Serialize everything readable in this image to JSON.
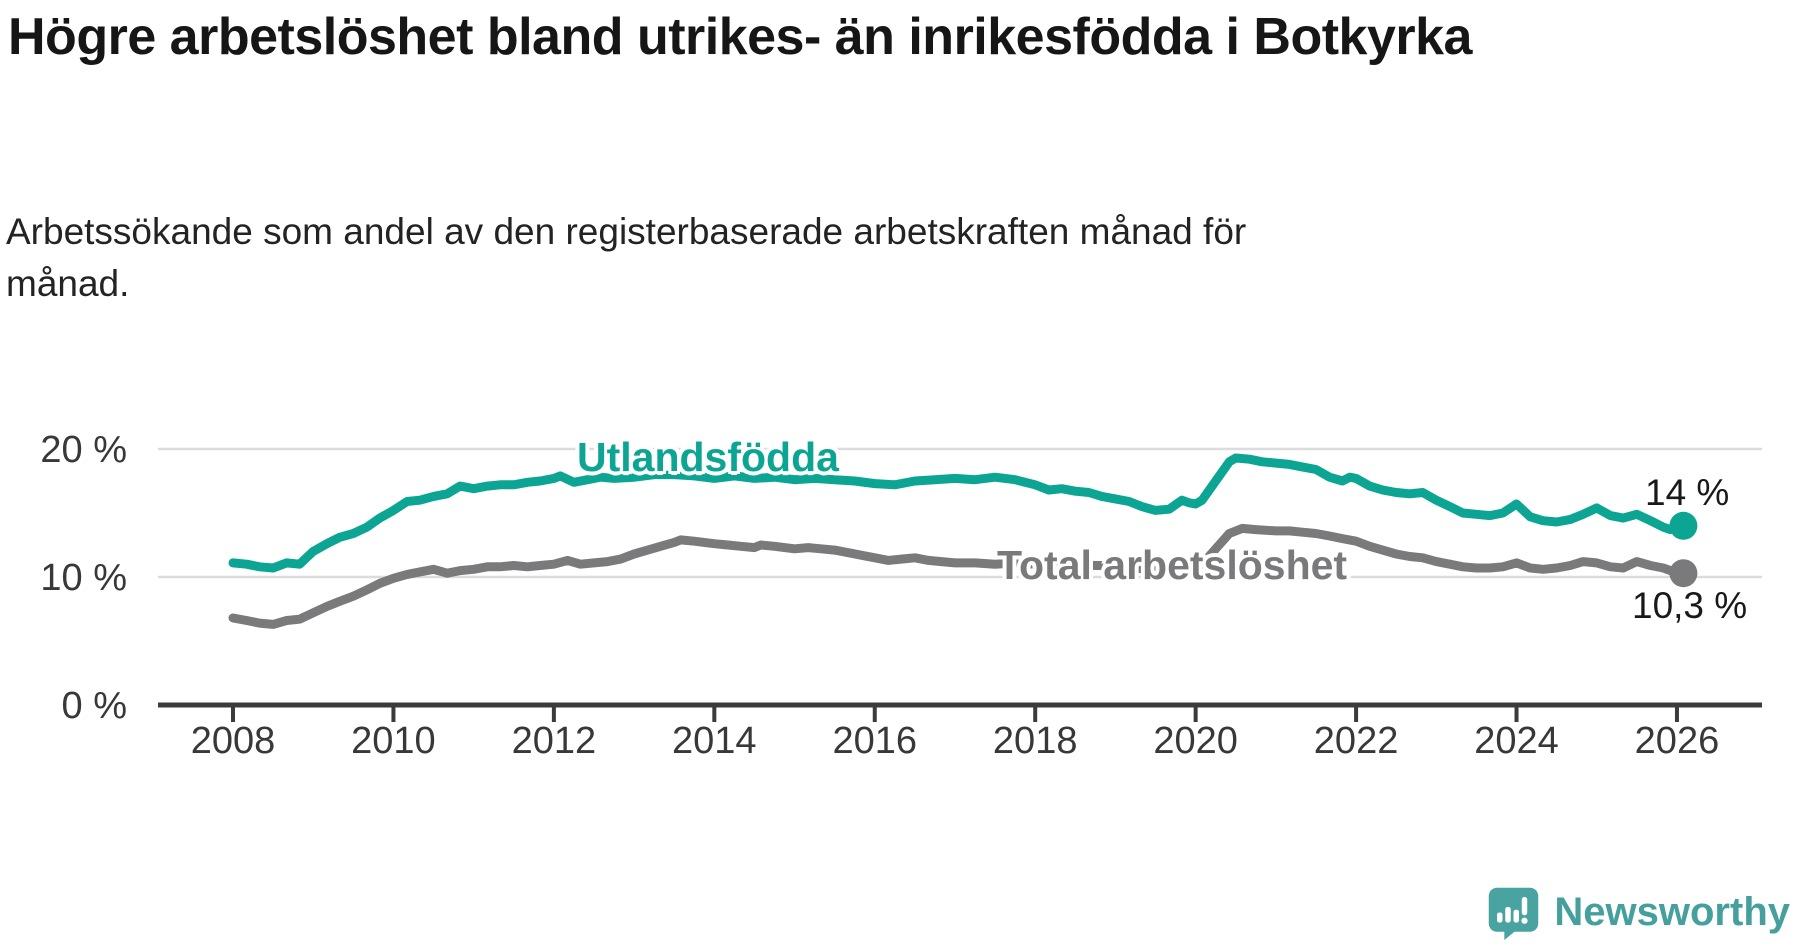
{
  "chart_data": {
    "type": "line",
    "title": "Högre arbetslöshet bland utrikes- än inrikesfödda i Botkyrka",
    "subtitle": "Arbetssökande som andel av den registerbaserade arbetskraften månad för månad.",
    "xlabel": "",
    "ylabel": "",
    "grid": "horizontal-only",
    "legend_position": "inline-on-lines",
    "x_domain": [
      2007.05,
      2027.1
    ],
    "y_domain": [
      0,
      21.5
    ],
    "x_ticks": [
      2008,
      2010,
      2012,
      2014,
      2016,
      2018,
      2020,
      2022,
      2024,
      2026
    ],
    "y_ticks": [
      {
        "value": 20,
        "label": "20 %"
      },
      {
        "value": 10,
        "label": "10 %"
      },
      {
        "value": 0,
        "label": "0 %"
      }
    ],
    "axis_color": "#3b3b3b",
    "gridline_color": "#dcdcdc",
    "series": [
      {
        "id": "utlandsfodda",
        "name": "Utlandsfödda",
        "color": "#0ca593",
        "end_label": "14 %",
        "last_value": 14.0,
        "points": [
          [
            2008.0,
            11.1
          ],
          [
            2008.17,
            11.0
          ],
          [
            2008.33,
            10.8
          ],
          [
            2008.5,
            10.7
          ],
          [
            2008.67,
            11.1
          ],
          [
            2008.83,
            11.0
          ],
          [
            2009.0,
            12.0
          ],
          [
            2009.17,
            12.6
          ],
          [
            2009.33,
            13.1
          ],
          [
            2009.5,
            13.4
          ],
          [
            2009.67,
            13.9
          ],
          [
            2009.83,
            14.6
          ],
          [
            2010.0,
            15.2
          ],
          [
            2010.17,
            15.9
          ],
          [
            2010.33,
            16.0
          ],
          [
            2010.5,
            16.3
          ],
          [
            2010.67,
            16.5
          ],
          [
            2010.83,
            17.1
          ],
          [
            2011.0,
            16.9
          ],
          [
            2011.17,
            17.1
          ],
          [
            2011.33,
            17.2
          ],
          [
            2011.5,
            17.2
          ],
          [
            2011.67,
            17.4
          ],
          [
            2011.83,
            17.5
          ],
          [
            2012.0,
            17.7
          ],
          [
            2012.08,
            17.9
          ],
          [
            2012.25,
            17.4
          ],
          [
            2012.42,
            17.6
          ],
          [
            2012.58,
            17.8
          ],
          [
            2012.75,
            17.7
          ],
          [
            2013.0,
            17.8
          ],
          [
            2013.25,
            18.0
          ],
          [
            2013.5,
            18.0
          ],
          [
            2013.75,
            17.9
          ],
          [
            2014.0,
            17.7
          ],
          [
            2014.25,
            17.9
          ],
          [
            2014.5,
            17.7
          ],
          [
            2014.75,
            17.8
          ],
          [
            2015.0,
            17.6
          ],
          [
            2015.25,
            17.7
          ],
          [
            2015.5,
            17.6
          ],
          [
            2015.75,
            17.5
          ],
          [
            2016.0,
            17.3
          ],
          [
            2016.25,
            17.2
          ],
          [
            2016.5,
            17.5
          ],
          [
            2016.75,
            17.6
          ],
          [
            2017.0,
            17.7
          ],
          [
            2017.25,
            17.6
          ],
          [
            2017.5,
            17.8
          ],
          [
            2017.75,
            17.6
          ],
          [
            2018.0,
            17.2
          ],
          [
            2018.17,
            16.8
          ],
          [
            2018.33,
            16.9
          ],
          [
            2018.5,
            16.7
          ],
          [
            2018.67,
            16.6
          ],
          [
            2018.83,
            16.3
          ],
          [
            2019.0,
            16.1
          ],
          [
            2019.17,
            15.9
          ],
          [
            2019.33,
            15.5
          ],
          [
            2019.5,
            15.2
          ],
          [
            2019.67,
            15.3
          ],
          [
            2019.83,
            16.0
          ],
          [
            2019.92,
            15.8
          ],
          [
            2020.0,
            15.7
          ],
          [
            2020.08,
            16.0
          ],
          [
            2020.25,
            17.5
          ],
          [
            2020.42,
            19.0
          ],
          [
            2020.5,
            19.3
          ],
          [
            2020.67,
            19.2
          ],
          [
            2020.83,
            19.0
          ],
          [
            2021.0,
            18.9
          ],
          [
            2021.17,
            18.8
          ],
          [
            2021.33,
            18.6
          ],
          [
            2021.5,
            18.4
          ],
          [
            2021.67,
            17.8
          ],
          [
            2021.83,
            17.5
          ],
          [
            2021.92,
            17.8
          ],
          [
            2022.0,
            17.7
          ],
          [
            2022.17,
            17.1
          ],
          [
            2022.33,
            16.8
          ],
          [
            2022.5,
            16.6
          ],
          [
            2022.67,
            16.5
          ],
          [
            2022.83,
            16.6
          ],
          [
            2023.0,
            16.0
          ],
          [
            2023.17,
            15.5
          ],
          [
            2023.33,
            15.0
          ],
          [
            2023.5,
            14.9
          ],
          [
            2023.67,
            14.8
          ],
          [
            2023.83,
            15.0
          ],
          [
            2024.0,
            15.7
          ],
          [
            2024.17,
            14.7
          ],
          [
            2024.33,
            14.4
          ],
          [
            2024.5,
            14.3
          ],
          [
            2024.67,
            14.5
          ],
          [
            2024.83,
            14.9
          ],
          [
            2025.0,
            15.4
          ],
          [
            2025.17,
            14.8
          ],
          [
            2025.33,
            14.6
          ],
          [
            2025.5,
            14.9
          ],
          [
            2025.67,
            14.4
          ],
          [
            2025.83,
            13.9
          ],
          [
            2025.92,
            13.7
          ],
          [
            2026.08,
            14.0
          ]
        ]
      },
      {
        "id": "total",
        "name": "Total arbetslöshet",
        "color": "#7a7a7c",
        "end_label": "10,3 %",
        "last_value": 10.3,
        "points": [
          [
            2008.0,
            6.8
          ],
          [
            2008.17,
            6.6
          ],
          [
            2008.33,
            6.4
          ],
          [
            2008.5,
            6.3
          ],
          [
            2008.67,
            6.6
          ],
          [
            2008.83,
            6.7
          ],
          [
            2009.0,
            7.2
          ],
          [
            2009.17,
            7.7
          ],
          [
            2009.33,
            8.1
          ],
          [
            2009.5,
            8.5
          ],
          [
            2009.67,
            9.0
          ],
          [
            2009.83,
            9.5
          ],
          [
            2010.0,
            9.9
          ],
          [
            2010.17,
            10.2
          ],
          [
            2010.33,
            10.4
          ],
          [
            2010.5,
            10.6
          ],
          [
            2010.67,
            10.3
          ],
          [
            2010.83,
            10.5
          ],
          [
            2011.0,
            10.6
          ],
          [
            2011.17,
            10.8
          ],
          [
            2011.33,
            10.8
          ],
          [
            2011.5,
            10.9
          ],
          [
            2011.67,
            10.8
          ],
          [
            2011.83,
            10.9
          ],
          [
            2012.0,
            11.0
          ],
          [
            2012.17,
            11.3
          ],
          [
            2012.33,
            11.0
          ],
          [
            2012.5,
            11.1
          ],
          [
            2012.67,
            11.2
          ],
          [
            2012.83,
            11.4
          ],
          [
            2013.0,
            11.8
          ],
          [
            2013.17,
            12.1
          ],
          [
            2013.33,
            12.4
          ],
          [
            2013.5,
            12.7
          ],
          [
            2013.58,
            12.9
          ],
          [
            2013.75,
            12.8
          ],
          [
            2014.0,
            12.6
          ],
          [
            2014.17,
            12.5
          ],
          [
            2014.33,
            12.4
          ],
          [
            2014.5,
            12.3
          ],
          [
            2014.58,
            12.5
          ],
          [
            2014.75,
            12.4
          ],
          [
            2015.0,
            12.2
          ],
          [
            2015.17,
            12.3
          ],
          [
            2015.33,
            12.2
          ],
          [
            2015.5,
            12.1
          ],
          [
            2015.67,
            11.9
          ],
          [
            2015.83,
            11.7
          ],
          [
            2016.0,
            11.5
          ],
          [
            2016.17,
            11.3
          ],
          [
            2016.33,
            11.4
          ],
          [
            2016.5,
            11.5
          ],
          [
            2016.67,
            11.3
          ],
          [
            2016.83,
            11.2
          ],
          [
            2017.0,
            11.1
          ],
          [
            2017.25,
            11.1
          ],
          [
            2017.5,
            11.0
          ],
          [
            2017.75,
            11.1
          ],
          [
            2018.0,
            11.0
          ],
          [
            2018.25,
            10.9
          ],
          [
            2018.5,
            11.0
          ],
          [
            2018.75,
            10.9
          ],
          [
            2019.0,
            10.9
          ],
          [
            2019.25,
            10.7
          ],
          [
            2019.5,
            10.5
          ],
          [
            2019.75,
            10.6
          ],
          [
            2020.0,
            10.8
          ],
          [
            2020.08,
            11.0
          ],
          [
            2020.25,
            12.2
          ],
          [
            2020.42,
            13.4
          ],
          [
            2020.58,
            13.8
          ],
          [
            2020.75,
            13.7
          ],
          [
            2021.0,
            13.6
          ],
          [
            2021.17,
            13.6
          ],
          [
            2021.33,
            13.5
          ],
          [
            2021.5,
            13.4
          ],
          [
            2021.67,
            13.2
          ],
          [
            2021.83,
            13.0
          ],
          [
            2022.0,
            12.8
          ],
          [
            2022.17,
            12.4
          ],
          [
            2022.33,
            12.1
          ],
          [
            2022.5,
            11.8
          ],
          [
            2022.67,
            11.6
          ],
          [
            2022.83,
            11.5
          ],
          [
            2023.0,
            11.2
          ],
          [
            2023.17,
            11.0
          ],
          [
            2023.33,
            10.8
          ],
          [
            2023.5,
            10.7
          ],
          [
            2023.67,
            10.7
          ],
          [
            2023.83,
            10.8
          ],
          [
            2024.0,
            11.1
          ],
          [
            2024.17,
            10.7
          ],
          [
            2024.33,
            10.6
          ],
          [
            2024.5,
            10.7
          ],
          [
            2024.67,
            10.9
          ],
          [
            2024.83,
            11.2
          ],
          [
            2025.0,
            11.1
          ],
          [
            2025.17,
            10.8
          ],
          [
            2025.33,
            10.7
          ],
          [
            2025.5,
            11.2
          ],
          [
            2025.67,
            10.9
          ],
          [
            2025.83,
            10.7
          ],
          [
            2025.92,
            10.5
          ],
          [
            2026.08,
            10.3
          ]
        ]
      }
    ]
  },
  "footer": {
    "brand": "Newsworthy",
    "logo_color": "#49a3a1"
  }
}
